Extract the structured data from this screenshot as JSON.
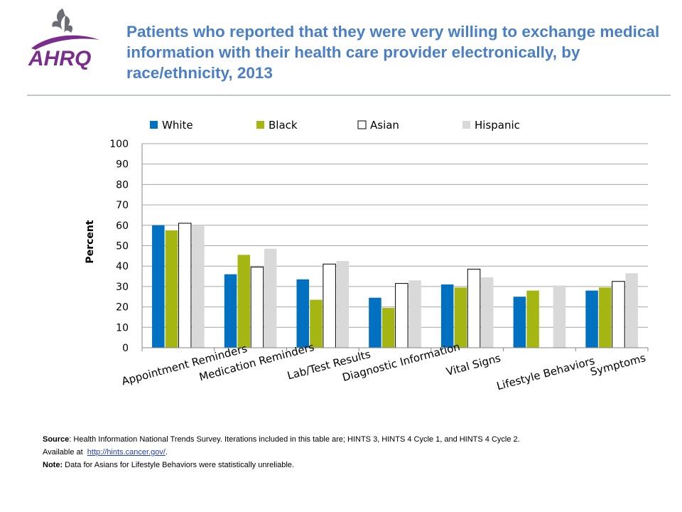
{
  "header": {
    "logo_text": "AHRQ",
    "title": "Patients who reported that they were very willing to exchange medical information with their health care provider electronically, by race/ethnicity, 2013"
  },
  "colors": {
    "title": "#4a7fc6",
    "rule": "#bfc5cc",
    "logo_purple": "#7b2d8e"
  },
  "chart_data": {
    "type": "bar",
    "title": "",
    "xlabel": "",
    "ylabel": "Percent",
    "ylim": [
      0,
      100
    ],
    "yticks": [
      0,
      10,
      20,
      30,
      40,
      50,
      60,
      70,
      80,
      90,
      100
    ],
    "grid": true,
    "legend_position": "top",
    "categories": [
      "Appointment Reminders",
      "Medication Reminders",
      "Lab/Test Results",
      "Diagnostic Information",
      "Vital Signs",
      "Lifestyle Behaviors",
      "Symptoms"
    ],
    "series": [
      {
        "name": "White",
        "color": "#0070c0",
        "outline": false,
        "values": [
          60,
          36,
          33.5,
          24.5,
          31,
          25,
          28
        ]
      },
      {
        "name": "Black",
        "color": "#a5b613",
        "outline": false,
        "values": [
          57.5,
          45.5,
          23.5,
          19.5,
          29.5,
          28,
          29.5
        ]
      },
      {
        "name": "Asian",
        "color": "#ffffff",
        "outline": true,
        "values": [
          61,
          39.5,
          41,
          31.5,
          38.5,
          null,
          32.5
        ]
      },
      {
        "name": "Hispanic",
        "color": "#d9d9d9",
        "outline": false,
        "values": [
          60,
          48.5,
          42.5,
          33,
          34.5,
          30.5,
          36.5
        ]
      }
    ]
  },
  "footer": {
    "source_label": "Source",
    "source_text": ": Health Information National Trends Survey. Iterations included in this table are; HINTS 3, HINTS 4 Cycle 1, and HINTS 4 Cycle 2.",
    "available_text": "Available at",
    "link_text": "http://hints.cancer.gov/",
    "link_suffix": ".",
    "note_label": "Note:",
    "note_text": "Data for Asians for Lifestyle Behaviors were statistically unreliable."
  }
}
